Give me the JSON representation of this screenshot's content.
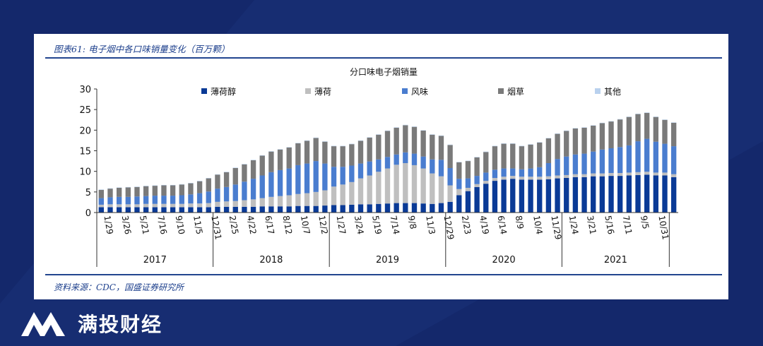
{
  "figure": {
    "caption": "图表61: 电子烟中各口味销量变化（百万颗）",
    "source": "资料来源：CDC，国盛证券研究所"
  },
  "brand": {
    "name": "满投财经"
  },
  "colors": {
    "background": "#14286b",
    "menthol": "#0a3a96",
    "mint": "#bfbfbf",
    "flavored": "#4a7dcf",
    "tobacco": "#7a7a7a",
    "other": "#b9d1ee"
  },
  "chart_data": {
    "type": "stacked-bar",
    "title": "分口味电子烟销量",
    "ylim": [
      0,
      30
    ],
    "yticks": [
      0,
      5,
      10,
      15,
      20,
      25,
      30
    ],
    "legend": [
      "薄荷醇",
      "薄荷",
      "风味",
      "烟草",
      "其他"
    ],
    "legend_position": "top",
    "tick_labels": [
      {
        "i": 0,
        "label": "1/29"
      },
      {
        "i": 2,
        "label": "3/26"
      },
      {
        "i": 4,
        "label": "5/21"
      },
      {
        "i": 6,
        "label": "7/16"
      },
      {
        "i": 8,
        "label": "9/10"
      },
      {
        "i": 10,
        "label": "11/5"
      },
      {
        "i": 12,
        "label": "12/31"
      },
      {
        "i": 14,
        "label": "2/25"
      },
      {
        "i": 16,
        "label": "4/22"
      },
      {
        "i": 18,
        "label": "6/17"
      },
      {
        "i": 20,
        "label": "8/12"
      },
      {
        "i": 22,
        "label": "10/7"
      },
      {
        "i": 24,
        "label": "12/2"
      },
      {
        "i": 26,
        "label": "1/27"
      },
      {
        "i": 28,
        "label": "3/24"
      },
      {
        "i": 30,
        "label": "5/19"
      },
      {
        "i": 32,
        "label": "7/14"
      },
      {
        "i": 34,
        "label": "9/8"
      },
      {
        "i": 36,
        "label": "11/3"
      },
      {
        "i": 38,
        "label": "12/29"
      },
      {
        "i": 40,
        "label": "2/23"
      },
      {
        "i": 42,
        "label": "4/19"
      },
      {
        "i": 44,
        "label": "6/14"
      },
      {
        "i": 46,
        "label": "8/9"
      },
      {
        "i": 48,
        "label": "10/4"
      },
      {
        "i": 50,
        "label": "11/29"
      },
      {
        "i": 52,
        "label": "1/24"
      },
      {
        "i": 54,
        "label": "3/21"
      },
      {
        "i": 56,
        "label": "5/16"
      },
      {
        "i": 58,
        "label": "7/11"
      },
      {
        "i": 60,
        "label": "9/5"
      },
      {
        "i": 62,
        "label": "10/31"
      }
    ],
    "years": [
      {
        "label": "2017",
        "start": 0,
        "end": 13
      },
      {
        "label": "2018",
        "start": 13,
        "end": 26
      },
      {
        "label": "2019",
        "start": 26,
        "end": 39
      },
      {
        "label": "2020",
        "start": 39,
        "end": 52
      },
      {
        "label": "2021",
        "start": 52,
        "end": 64
      }
    ],
    "series": [
      {
        "name": "薄荷醇",
        "values": [
          1.3,
          1.3,
          1.3,
          1.3,
          1.3,
          1.3,
          1.3,
          1.3,
          1.3,
          1.3,
          1.3,
          1.3,
          1.3,
          1.4,
          1.4,
          1.4,
          1.4,
          1.4,
          1.5,
          1.5,
          1.5,
          1.5,
          1.6,
          1.6,
          1.6,
          1.7,
          1.8,
          1.8,
          1.9,
          2.0,
          2.0,
          2.1,
          2.2,
          2.3,
          2.3,
          2.3,
          2.2,
          2.1,
          2.3,
          2.6,
          4.2,
          5.2,
          6.2,
          7.0,
          7.7,
          8.0,
          8.2,
          8.0,
          8.0,
          8.0,
          8.1,
          8.3,
          8.4,
          8.6,
          8.6,
          8.8,
          8.8,
          8.9,
          8.9,
          9.0,
          9.1,
          9.2,
          9.0,
          9.0,
          8.6
        ]
      },
      {
        "name": "薄荷",
        "values": [
          0.6,
          0.7,
          0.7,
          0.7,
          0.7,
          0.8,
          0.8,
          0.8,
          0.8,
          0.8,
          0.9,
          0.9,
          1.0,
          1.2,
          1.3,
          1.4,
          1.6,
          1.8,
          2.0,
          2.3,
          2.5,
          2.7,
          2.9,
          3.1,
          3.4,
          3.7,
          4.5,
          5.0,
          5.5,
          6.3,
          7.0,
          7.8,
          8.5,
          9.3,
          9.7,
          9.2,
          8.5,
          7.4,
          6.5,
          4.0,
          1.5,
          0.8,
          0.7,
          0.7,
          0.7,
          0.7,
          0.7,
          0.7,
          0.7,
          0.7,
          0.7,
          0.7,
          0.7,
          0.7,
          0.7,
          0.7,
          0.7,
          0.7,
          0.7,
          0.7,
          0.7,
          0.7,
          0.7,
          0.7,
          0.7
        ]
      },
      {
        "name": "风味",
        "values": [
          1.6,
          1.7,
          1.8,
          1.8,
          1.9,
          1.9,
          2.0,
          2.0,
          2.0,
          2.1,
          2.2,
          2.5,
          2.8,
          3.2,
          3.5,
          4.0,
          4.5,
          5.0,
          5.5,
          6.0,
          6.3,
          6.5,
          7.0,
          7.2,
          7.5,
          6.5,
          4.8,
          4.3,
          4.0,
          3.6,
          3.4,
          3.0,
          2.8,
          2.5,
          2.6,
          2.8,
          2.9,
          3.4,
          4.0,
          4.2,
          2.5,
          2.3,
          2.0,
          2.0,
          2.0,
          2.0,
          1.8,
          1.8,
          2.0,
          2.3,
          3.2,
          4.0,
          4.5,
          4.8,
          5.0,
          5.3,
          5.8,
          6.0,
          6.3,
          6.6,
          7.5,
          8.0,
          7.5,
          7.0,
          6.8
        ]
      },
      {
        "name": "烟草",
        "values": [
          2.0,
          2.1,
          2.2,
          2.3,
          2.3,
          2.4,
          2.4,
          2.5,
          2.5,
          2.6,
          2.7,
          2.9,
          3.2,
          3.4,
          3.6,
          4.0,
          4.2,
          4.5,
          4.8,
          5.0,
          5.0,
          5.1,
          5.3,
          5.5,
          5.6,
          5.3,
          5.0,
          5.0,
          5.2,
          5.5,
          5.8,
          6.0,
          6.3,
          6.5,
          6.6,
          6.5,
          6.3,
          6.0,
          5.8,
          5.6,
          4.0,
          4.2,
          4.5,
          5.0,
          5.7,
          6.0,
          6.0,
          5.6,
          5.8,
          6.0,
          6.0,
          6.1,
          6.2,
          6.3,
          6.3,
          6.3,
          6.4,
          6.5,
          6.7,
          6.9,
          6.6,
          6.3,
          6.0,
          5.8,
          5.7
        ]
      },
      {
        "name": "其他",
        "values": [
          0.1,
          0.1,
          0.1,
          0.1,
          0.1,
          0.1,
          0.1,
          0.1,
          0.1,
          0.1,
          0.1,
          0.1,
          0.1,
          0.1,
          0.1,
          0.1,
          0.1,
          0.1,
          0.1,
          0.1,
          0.1,
          0.1,
          0.1,
          0.1,
          0.1,
          0.1,
          0.1,
          0.1,
          0.1,
          0.1,
          0.1,
          0.1,
          0.1,
          0.1,
          0.1,
          0.1,
          0.1,
          0.1,
          0.1,
          0.1,
          0.1,
          0.1,
          0.1,
          0.1,
          0.1,
          0.1,
          0.1,
          0.1,
          0.1,
          0.1,
          0.1,
          0.1,
          0.1,
          0.1,
          0.1,
          0.1,
          0.1,
          0.1,
          0.1,
          0.1,
          0.1,
          0.1,
          0.1,
          0.1,
          0.1
        ]
      }
    ]
  }
}
